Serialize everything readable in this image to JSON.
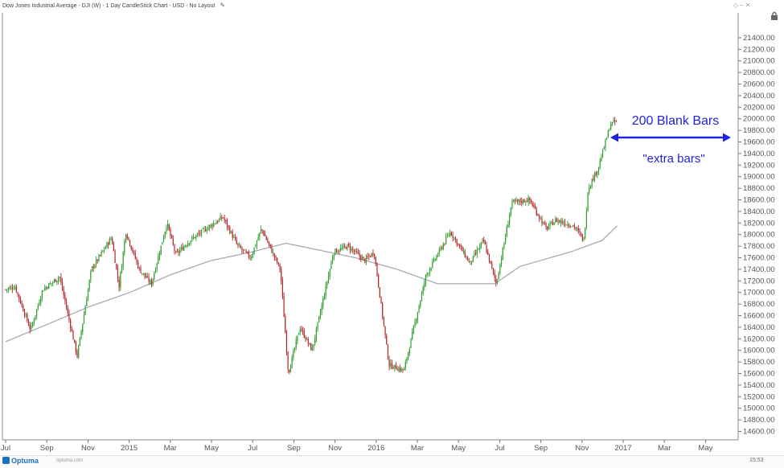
{
  "header": {
    "title": "Dow Jones Industrial Average - DJI (W) - 1 Day CandleStick Chart - USD - No Layout",
    "edit_icon": "pencil-icon",
    "window_icons": [
      "diamond-icon",
      "minimize-icon",
      "close-icon"
    ]
  },
  "footer": {
    "brand": "Optuma",
    "site": "optuma.com",
    "clock": "15:53"
  },
  "chart_data": {
    "type": "candlestick",
    "yaxis": {
      "range": [
        14500,
        21500
      ],
      "ticks": [
        14600,
        14800,
        15000,
        15200,
        15400,
        15600,
        15800,
        16000,
        16200,
        16400,
        16600,
        16800,
        17000,
        17200,
        17400,
        17600,
        17800,
        18000,
        18200,
        18400,
        18600,
        18800,
        19000,
        19200,
        19400,
        19600,
        19800,
        20000,
        20200,
        20400,
        20600,
        20800,
        21000,
        21200,
        21400
      ],
      "tick_format": "decimal2"
    },
    "xaxis": {
      "ticks": [
        "Jul",
        "Sep",
        "Nov",
        "2015",
        "Mar",
        "May",
        "Jul",
        "Sep",
        "Nov",
        "2016",
        "Mar",
        "May",
        "Jul",
        "Sep",
        "Nov",
        "2017",
        "Mar",
        "May"
      ]
    },
    "price_path": [
      [
        "2014-07-01",
        17050
      ],
      [
        "2014-07-15",
        17100
      ],
      [
        "2014-08-07",
        16350
      ],
      [
        "2014-08-25",
        17050
      ],
      [
        "2014-09-19",
        17270
      ],
      [
        "2014-10-15",
        15900
      ],
      [
        "2014-11-05",
        17400
      ],
      [
        "2014-12-05",
        17950
      ],
      [
        "2014-12-16",
        17100
      ],
      [
        "2014-12-26",
        18050
      ],
      [
        "2015-01-15",
        17400
      ],
      [
        "2015-02-02",
        17150
      ],
      [
        "2015-02-25",
        18200
      ],
      [
        "2015-03-10",
        17650
      ],
      [
        "2015-03-31",
        17900
      ],
      [
        "2015-04-24",
        18100
      ],
      [
        "2015-05-19",
        18300
      ],
      [
        "2015-06-10",
        17800
      ],
      [
        "2015-06-29",
        17600
      ],
      [
        "2015-07-15",
        18100
      ],
      [
        "2015-07-31",
        17700
      ],
      [
        "2015-08-12",
        17400
      ],
      [
        "2015-08-24",
        15600
      ],
      [
        "2015-09-10",
        16400
      ],
      [
        "2015-09-28",
        16000
      ],
      [
        "2015-10-30",
        17700
      ],
      [
        "2015-11-20",
        17800
      ],
      [
        "2015-12-15",
        17550
      ],
      [
        "2015-12-29",
        17700
      ],
      [
        "2016-01-20",
        15750
      ],
      [
        "2016-02-11",
        15650
      ],
      [
        "2016-03-15",
        17300
      ],
      [
        "2016-04-20",
        18050
      ],
      [
        "2016-05-19",
        17500
      ],
      [
        "2016-06-08",
        17900
      ],
      [
        "2016-06-27",
        17150
      ],
      [
        "2016-07-20",
        18550
      ],
      [
        "2016-08-15",
        18600
      ],
      [
        "2016-09-09",
        18100
      ],
      [
        "2016-09-23",
        18250
      ],
      [
        "2016-10-20",
        18150
      ],
      [
        "2016-11-04",
        17900
      ],
      [
        "2016-11-10",
        18800
      ],
      [
        "2016-11-25",
        19150
      ],
      [
        "2016-12-13",
        19900
      ],
      [
        "2016-12-20",
        19950
      ],
      [
        "2016-12-23",
        19930
      ]
    ],
    "moving_average": [
      [
        "2014-07-01",
        16150
      ],
      [
        "2014-09-01",
        16450
      ],
      [
        "2014-11-01",
        16750
      ],
      [
        "2015-01-01",
        17000
      ],
      [
        "2015-03-01",
        17300
      ],
      [
        "2015-05-01",
        17550
      ],
      [
        "2015-07-01",
        17700
      ],
      [
        "2015-08-20",
        17850
      ],
      [
        "2015-10-01",
        17750
      ],
      [
        "2015-12-01",
        17600
      ],
      [
        "2016-02-01",
        17400
      ],
      [
        "2016-04-01",
        17150
      ],
      [
        "2016-06-01",
        17150
      ],
      [
        "2016-06-25",
        17150
      ],
      [
        "2016-08-01",
        17450
      ],
      [
        "2016-10-15",
        17700
      ],
      [
        "2016-12-01",
        17900
      ],
      [
        "2016-12-23",
        18150
      ]
    ],
    "colors": {
      "up": "#2f9e2f",
      "down": "#b3262c",
      "moving_average": "#a7a9b6",
      "annotation": "#2222dd"
    },
    "annotations": [
      {
        "text": "200 Blank Bars",
        "role": "label"
      },
      {
        "text": "\"extra bars\"",
        "role": "label"
      }
    ]
  }
}
